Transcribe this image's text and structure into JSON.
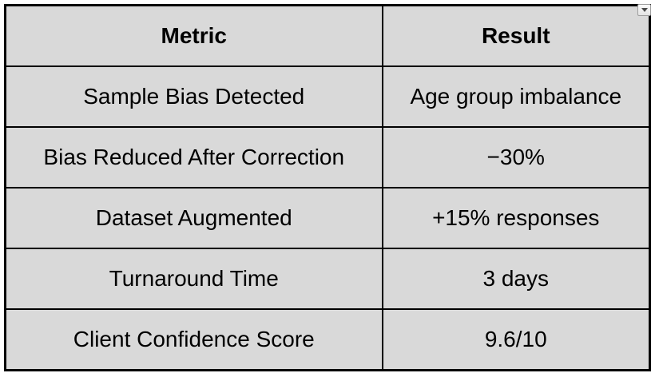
{
  "table": {
    "border_color": "#000000",
    "cell_background": "#d9d9d9",
    "text_color": "#000000",
    "headers": [
      {
        "label": "Metric"
      },
      {
        "label": "Result"
      }
    ],
    "rows": [
      {
        "metric": "Sample Bias Detected",
        "result": "Age group imbalance"
      },
      {
        "metric": "Bias Reduced After Correction",
        "result": "−30%"
      },
      {
        "metric": "Dataset Augmented",
        "result": "+15% responses"
      },
      {
        "metric": "Turnaround Time",
        "result": "3 days"
      },
      {
        "metric": "Client Confidence Score",
        "result": "9.6/10"
      }
    ]
  },
  "controls": {
    "table_dropdown": {
      "icon": "caret-down-icon"
    }
  }
}
